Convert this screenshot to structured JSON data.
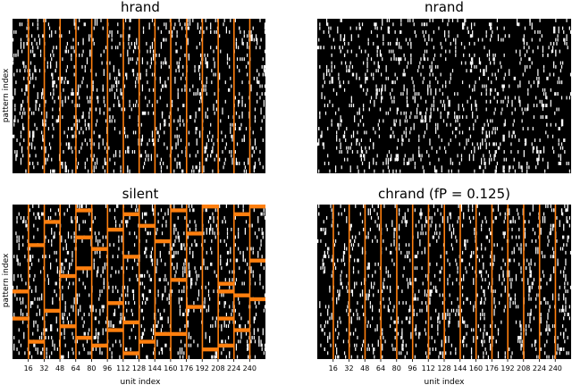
{
  "chart_data": [
    {
      "type": "heatmap",
      "title": "hrand",
      "ylabel": "pattern index",
      "xlabel": "",
      "x_ticks": [],
      "n_units": 256,
      "n_patterns": 40,
      "orange_columns": [
        16,
        32,
        48,
        64,
        80,
        96,
        112,
        128,
        144,
        160,
        176,
        192,
        208,
        224,
        240
      ],
      "orange_blocks": [],
      "background": "#000000",
      "spike_color": "#ffffff",
      "marker_color": "#ff7f0e"
    },
    {
      "type": "heatmap",
      "title": "nrand",
      "ylabel": "",
      "xlabel": "",
      "x_ticks": [],
      "n_units": 256,
      "n_patterns": 40,
      "orange_columns": [],
      "orange_blocks": [],
      "background": "#000000",
      "spike_color": "#ffffff",
      "marker_color": "#ff7f0e"
    },
    {
      "type": "heatmap",
      "title": "silent",
      "ylabel": "pattern index",
      "xlabel": "unit index",
      "x_ticks": [
        16,
        32,
        48,
        64,
        80,
        96,
        112,
        128,
        144,
        160,
        176,
        192,
        208,
        224,
        240
      ],
      "n_units": 256,
      "n_patterns": 40,
      "orange_columns": [
        16,
        32,
        48,
        64,
        80,
        96,
        112,
        128,
        144,
        160,
        176,
        192,
        208,
        224,
        240
      ],
      "orange_blocks": [
        {
          "unit": 64,
          "pattern": 1
        },
        {
          "unit": 112,
          "pattern": 2
        },
        {
          "unit": 160,
          "pattern": 1
        },
        {
          "unit": 192,
          "pattern": 0
        },
        {
          "unit": 224,
          "pattern": 2
        },
        {
          "unit": 240,
          "pattern": 0
        },
        {
          "unit": 32,
          "pattern": 4
        },
        {
          "unit": 96,
          "pattern": 6
        },
        {
          "unit": 128,
          "pattern": 5
        },
        {
          "unit": 64,
          "pattern": 8
        },
        {
          "unit": 144,
          "pattern": 9
        },
        {
          "unit": 16,
          "pattern": 10
        },
        {
          "unit": 176,
          "pattern": 7
        },
        {
          "unit": 80,
          "pattern": 11
        },
        {
          "unit": 240,
          "pattern": 14
        },
        {
          "unit": 112,
          "pattern": 13
        },
        {
          "unit": 64,
          "pattern": 16
        },
        {
          "unit": 48,
          "pattern": 18
        },
        {
          "unit": 160,
          "pattern": 19
        },
        {
          "unit": 208,
          "pattern": 20
        },
        {
          "unit": 0,
          "pattern": 22
        },
        {
          "unit": 96,
          "pattern": 25
        },
        {
          "unit": 224,
          "pattern": 23
        },
        {
          "unit": 32,
          "pattern": 27
        },
        {
          "unit": 176,
          "pattern": 26
        },
        {
          "unit": 240,
          "pattern": 24
        },
        {
          "unit": 208,
          "pattern": 22
        },
        {
          "unit": 0,
          "pattern": 29
        },
        {
          "unit": 112,
          "pattern": 30
        },
        {
          "unit": 48,
          "pattern": 31
        },
        {
          "unit": 208,
          "pattern": 29
        },
        {
          "unit": 96,
          "pattern": 32
        },
        {
          "unit": 144,
          "pattern": 33
        },
        {
          "unit": 224,
          "pattern": 32
        },
        {
          "unit": 16,
          "pattern": 35
        },
        {
          "unit": 64,
          "pattern": 34
        },
        {
          "unit": 80,
          "pattern": 36
        },
        {
          "unit": 128,
          "pattern": 35
        },
        {
          "unit": 208,
          "pattern": 36
        },
        {
          "unit": 112,
          "pattern": 38
        },
        {
          "unit": 160,
          "pattern": 33
        },
        {
          "unit": 192,
          "pattern": 37
        }
      ],
      "background": "#000000",
      "spike_color": "#ffffff",
      "marker_color": "#ff7f0e"
    },
    {
      "type": "heatmap",
      "title": "chrand (fP = 0.125)",
      "ylabel": "",
      "xlabel": "unit index",
      "x_ticks": [
        16,
        32,
        48,
        64,
        80,
        96,
        112,
        128,
        144,
        160,
        176,
        192,
        208,
        224,
        240
      ],
      "n_units": 256,
      "n_patterns": 40,
      "orange_columns": [
        16,
        32,
        48,
        64,
        80,
        96,
        112,
        128,
        144,
        160,
        176,
        192,
        208,
        224,
        240
      ],
      "orange_blocks": [],
      "background": "#000000",
      "spike_color": "#ffffff",
      "marker_color": "#ff7f0e"
    }
  ]
}
